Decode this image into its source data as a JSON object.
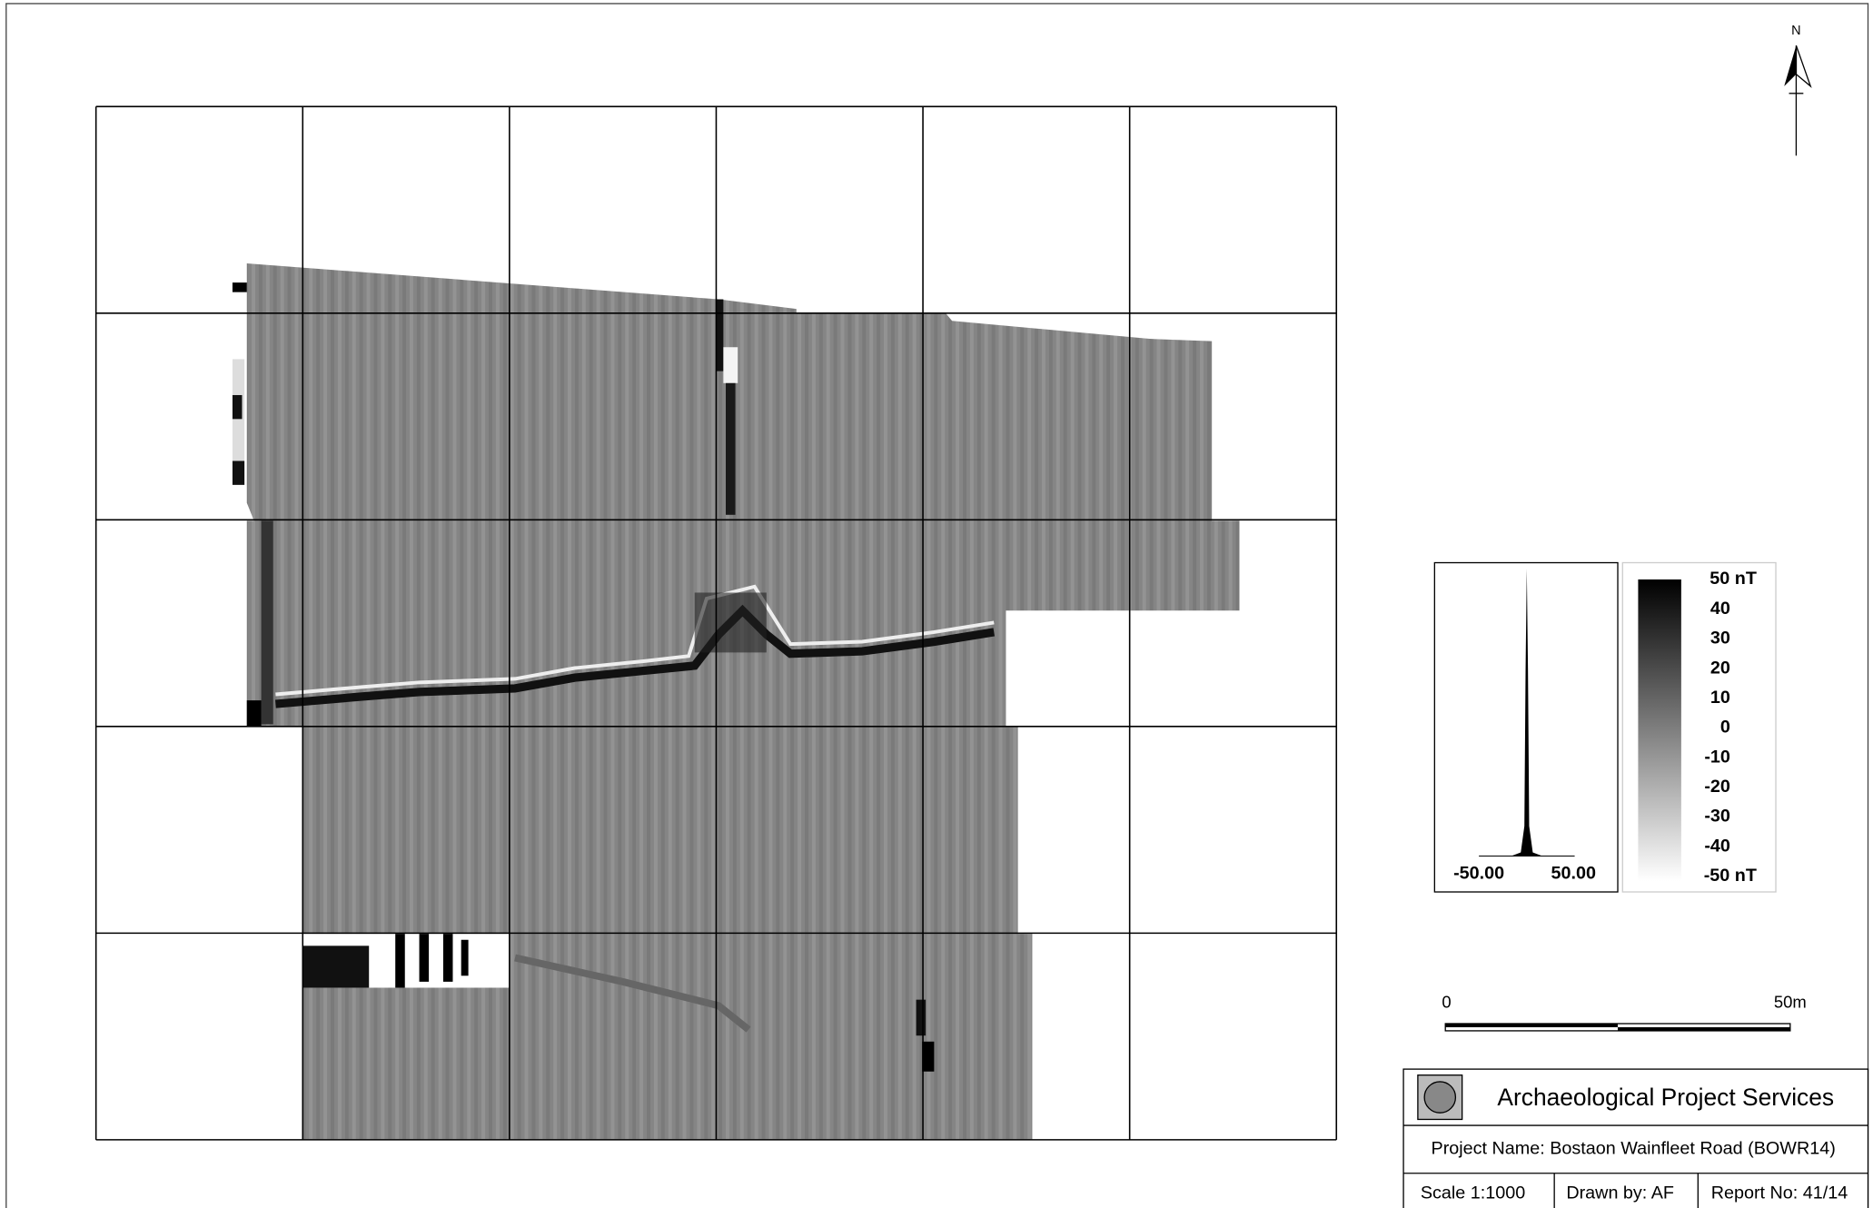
{
  "north": "N",
  "histogram": {
    "min_label": "-50.00",
    "max_label": "50.00"
  },
  "legend": {
    "labels": [
      "50 nT",
      "40",
      "30",
      "20",
      "10",
      "0",
      "-10",
      "-20",
      "-30",
      "-40",
      "-50 nT"
    ]
  },
  "scale_bar": {
    "start": "0",
    "end": "50m"
  },
  "title_block": {
    "organisation": "Archaeological Project Services",
    "project": "Project Name: Bostaon Wainfleet Road (BOWR14)",
    "scale": "Scale 1:1000",
    "drawn_by": "Drawn by: AF",
    "report": "Report No: 41/14"
  }
}
